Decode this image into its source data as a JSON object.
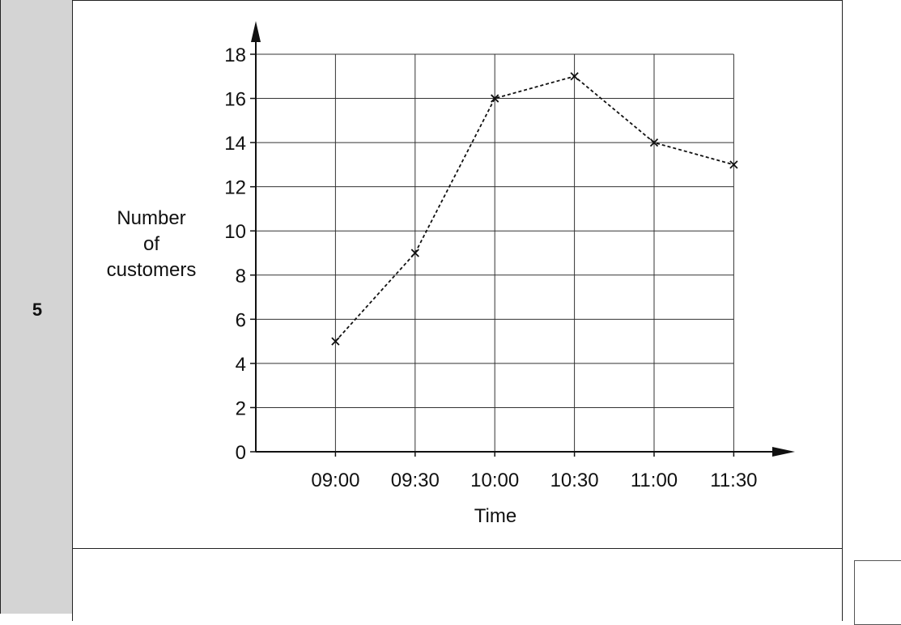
{
  "question": {
    "number": "5"
  },
  "chart_data": {
    "type": "line",
    "categories": [
      "09:00",
      "09:30",
      "10:00",
      "10:30",
      "11:00",
      "11:30"
    ],
    "values": [
      5,
      9,
      16,
      17,
      14,
      13
    ],
    "xlabel": "Time",
    "ylabel": [
      "Number",
      "of",
      "customers"
    ],
    "ylim": [
      0,
      18
    ],
    "yticks": [
      0,
      2,
      4,
      6,
      8,
      10,
      12,
      14,
      16,
      18
    ],
    "grid": true,
    "line_style": "dashed",
    "marker": "x"
  }
}
